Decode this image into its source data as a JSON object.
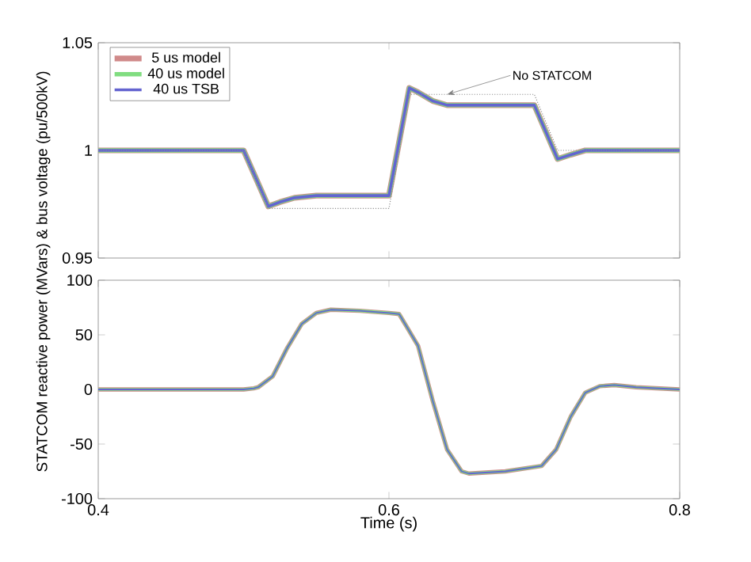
{
  "chart_data": [
    {
      "type": "line",
      "legend": "top left",
      "marker": "none",
      "grid": false,
      "tick_labels": "y",
      "x": [
        0.4,
        0.5,
        0.517,
        0.525,
        0.535,
        0.55,
        0.6,
        0.614,
        0.62,
        0.63,
        0.64,
        0.7,
        0.716,
        0.725,
        0.735,
        0.75,
        0.8
      ],
      "xlim": [
        0.4,
        0.8
      ],
      "ylim": [
        0.95,
        1.05
      ],
      "xticks": [
        {
          "value": 0.4,
          "label": null
        },
        {
          "value": 0.6,
          "label": null
        },
        {
          "value": 0.8,
          "label": null
        }
      ],
      "yticks": [
        0.95,
        1,
        1.05
      ],
      "series": [
        {
          "name": "5 us model",
          "color": "#d08a8a",
          "values": [
            1.0,
            1.0,
            0.974,
            0.976,
            0.978,
            0.979,
            0.979,
            1.029,
            1.027,
            1.023,
            1.021,
            1.021,
            0.996,
            0.998,
            1.0,
            1.0,
            1.0
          ]
        },
        {
          "name": "40 us model",
          "color": "#80dd80",
          "values": [
            1.0,
            1.0,
            0.974,
            0.976,
            0.978,
            0.979,
            0.979,
            1.029,
            1.027,
            1.023,
            1.021,
            1.021,
            0.996,
            0.998,
            1.0,
            1.0,
            1.0
          ]
        },
        {
          "name": "40 us TSB",
          "color": "#6464d0",
          "values": [
            1.0,
            1.0,
            0.974,
            0.976,
            0.978,
            0.979,
            0.979,
            1.029,
            1.027,
            1.023,
            1.021,
            1.021,
            0.996,
            0.998,
            1.0,
            1.0,
            1.0
          ]
        },
        {
          "color": "#909090",
          "line_style": "dotted",
          "values": [
            1.0,
            1.0,
            0.973,
            0.973,
            0.973,
            0.973,
            0.973,
            1.026,
            1.026,
            1.026,
            1.026,
            1.026,
            1.0,
            1.0,
            1.0,
            1.0,
            1.0
          ]
        }
      ],
      "annotations": [
        {
          "text": "No STATCOM",
          "x": 0.64,
          "y": 1.026
        }
      ]
    },
    {
      "type": "line",
      "legend": false,
      "marker": "none",
      "grid": false,
      "xlabel": "Time (s)",
      "ylabel": "STATCOM reactive power (MVars) & bus voltage (pu/500kV)",
      "x": [
        0.4,
        0.5,
        0.507,
        0.51,
        0.52,
        0.53,
        0.54,
        0.55,
        0.56,
        0.58,
        0.6,
        0.607,
        0.62,
        0.63,
        0.64,
        0.65,
        0.655,
        0.68,
        0.705,
        0.715,
        0.725,
        0.735,
        0.745,
        0.755,
        0.77,
        0.8
      ],
      "xlim": [
        0.4,
        0.8
      ],
      "ylim": [
        -100,
        100
      ],
      "xticks": [
        0.4,
        0.6,
        0.8
      ],
      "yticks": [
        -100,
        -50,
        0,
        50,
        100
      ],
      "series": [
        {
          "color": "#d08a8a",
          "values": [
            0,
            0,
            1,
            2,
            12,
            38,
            60,
            70,
            73,
            72,
            70,
            69,
            40,
            -10,
            -55,
            -75,
            -77,
            -75,
            -70,
            -55,
            -25,
            -3,
            3,
            4,
            2,
            0
          ]
        },
        {
          "color": "#80dd80",
          "values": [
            0,
            0,
            1,
            2,
            12,
            38,
            60,
            70,
            73,
            72,
            70,
            69,
            40,
            -10,
            -55,
            -75,
            -77,
            -75,
            -70,
            -55,
            -25,
            -3,
            3,
            4,
            2,
            0
          ]
        },
        {
          "color": "#6464d0",
          "values": [
            0,
            0,
            1,
            2,
            12,
            38,
            60,
            70,
            73,
            72,
            70,
            69,
            40,
            -10,
            -55,
            -75,
            -77,
            -75,
            -70,
            -55,
            -25,
            -3,
            3,
            4,
            2,
            0
          ]
        }
      ]
    }
  ]
}
